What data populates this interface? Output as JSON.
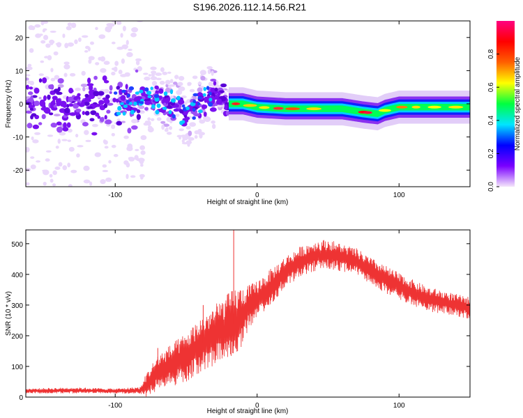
{
  "title": "S196.2026.112.14.56.R21",
  "chart_data": [
    {
      "type": "heatmap",
      "name": "spectrogram",
      "xlabel": "Height of straight line (km)",
      "ylabel": "Frequency (Hz)",
      "xlim": [
        -163,
        150
      ],
      "ylim": [
        -25,
        25
      ],
      "xticks": [
        -100,
        0,
        100
      ],
      "yticks": [
        -20,
        -10,
        0,
        10,
        20
      ],
      "colorbar": {
        "label": "Normalized spectral amplitude",
        "range": [
          0,
          1
        ],
        "ticks": [
          0.0,
          0.2,
          0.4,
          0.6,
          0.8
        ],
        "colors": [
          "#f4e6fb",
          "#7a00ff",
          "#0000ff",
          "#00e5ff",
          "#00ff40",
          "#ffff00",
          "#ff6000",
          "#ff0000",
          "#ff0080"
        ]
      },
      "ridge": {
        "description": "main spectral ridge frequency vs height",
        "x": [
          -163,
          -120,
          -90,
          -80,
          -60,
          -50,
          -40,
          -30,
          -20,
          -10,
          0,
          20,
          60,
          75,
          85,
          90,
          100,
          150
        ],
        "freq": [
          0,
          0,
          1,
          2,
          0,
          -3,
          0,
          3,
          0,
          0,
          -1,
          -1.5,
          -1.5,
          -2.5,
          -3,
          -2,
          -1,
          -1
        ]
      }
    },
    {
      "type": "line",
      "name": "snr",
      "xlabel": "Height of straight line (km)",
      "ylabel": "SNR (10 * v/v)",
      "xlim": [
        -163,
        150
      ],
      "ylim": [
        0,
        545
      ],
      "xticks": [
        -100,
        0,
        100
      ],
      "yticks": [
        0,
        100,
        200,
        300,
        400,
        500
      ],
      "color": "#ee3333",
      "envelope": {
        "x": [
          -163,
          -130,
          -100,
          -82,
          -78,
          -70,
          -50,
          -40,
          -30,
          -20,
          -15,
          -8,
          0,
          10,
          20,
          30,
          40,
          50,
          60,
          70,
          80,
          100,
          120,
          150
        ],
        "mean": [
          20,
          22,
          20,
          22,
          40,
          80,
          130,
          170,
          200,
          230,
          240,
          280,
          320,
          360,
          410,
          440,
          460,
          465,
          455,
          440,
          410,
          360,
          320,
          290
        ],
        "amp": [
          8,
          10,
          8,
          12,
          40,
          60,
          80,
          90,
          100,
          110,
          120,
          80,
          60,
          60,
          50,
          50,
          50,
          50,
          45,
          45,
          45,
          45,
          40,
          35
        ]
      },
      "spikes": [
        {
          "x": -16.5,
          "y": 545
        },
        {
          "x": -70,
          "y": 160
        },
        {
          "x": -38,
          "y": 300
        }
      ]
    }
  ]
}
